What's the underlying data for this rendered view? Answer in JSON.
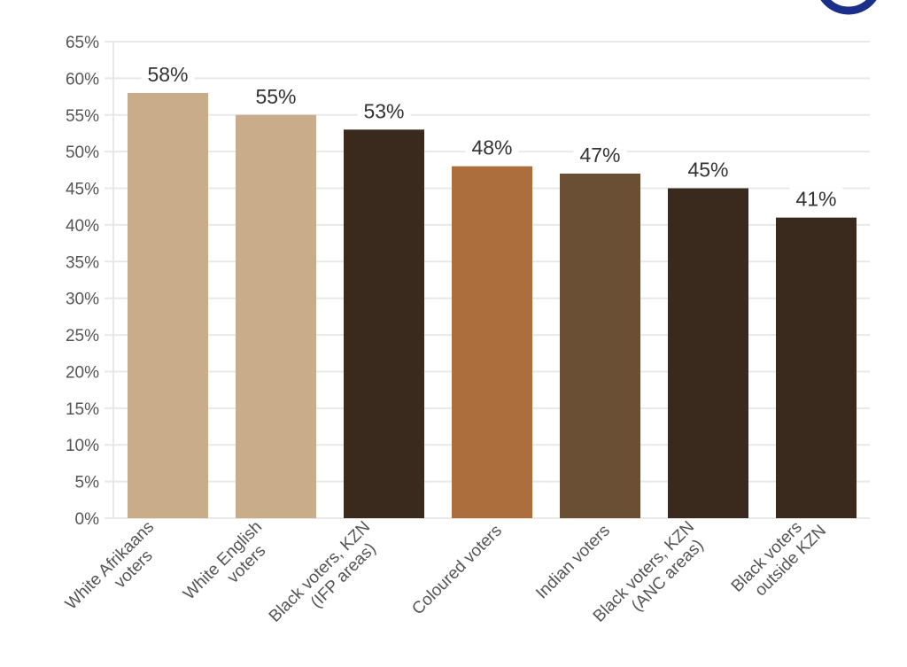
{
  "chart_data": {
    "type": "bar",
    "title": "",
    "xlabel": "",
    "ylabel": "",
    "ylim": [
      0,
      65
    ],
    "ytick_step": 5,
    "ytick_suffix": "%",
    "grid": true,
    "categories": [
      [
        "White Afrikaans",
        "voters"
      ],
      [
        "White English",
        "voters"
      ],
      [
        "Black voters, KZN",
        "(IFP areas)"
      ],
      [
        "Coloured voters"
      ],
      [
        "Indian voters"
      ],
      [
        "Black voters, KZN",
        "(ANC areas)"
      ],
      [
        "Black voters",
        "outside KZN"
      ]
    ],
    "values": [
      58,
      55,
      53,
      48,
      47,
      45,
      41
    ],
    "data_labels": [
      "58%",
      "55%",
      "53%",
      "48%",
      "47%",
      "45%",
      "41%"
    ],
    "colors": [
      "#c9ad8b",
      "#c9ad8b",
      "#3a2a1d",
      "#ac6e3c",
      "#6b4f35",
      "#3a2a1d",
      "#3a2a1d"
    ]
  },
  "logo_color": "#1a2f8a"
}
